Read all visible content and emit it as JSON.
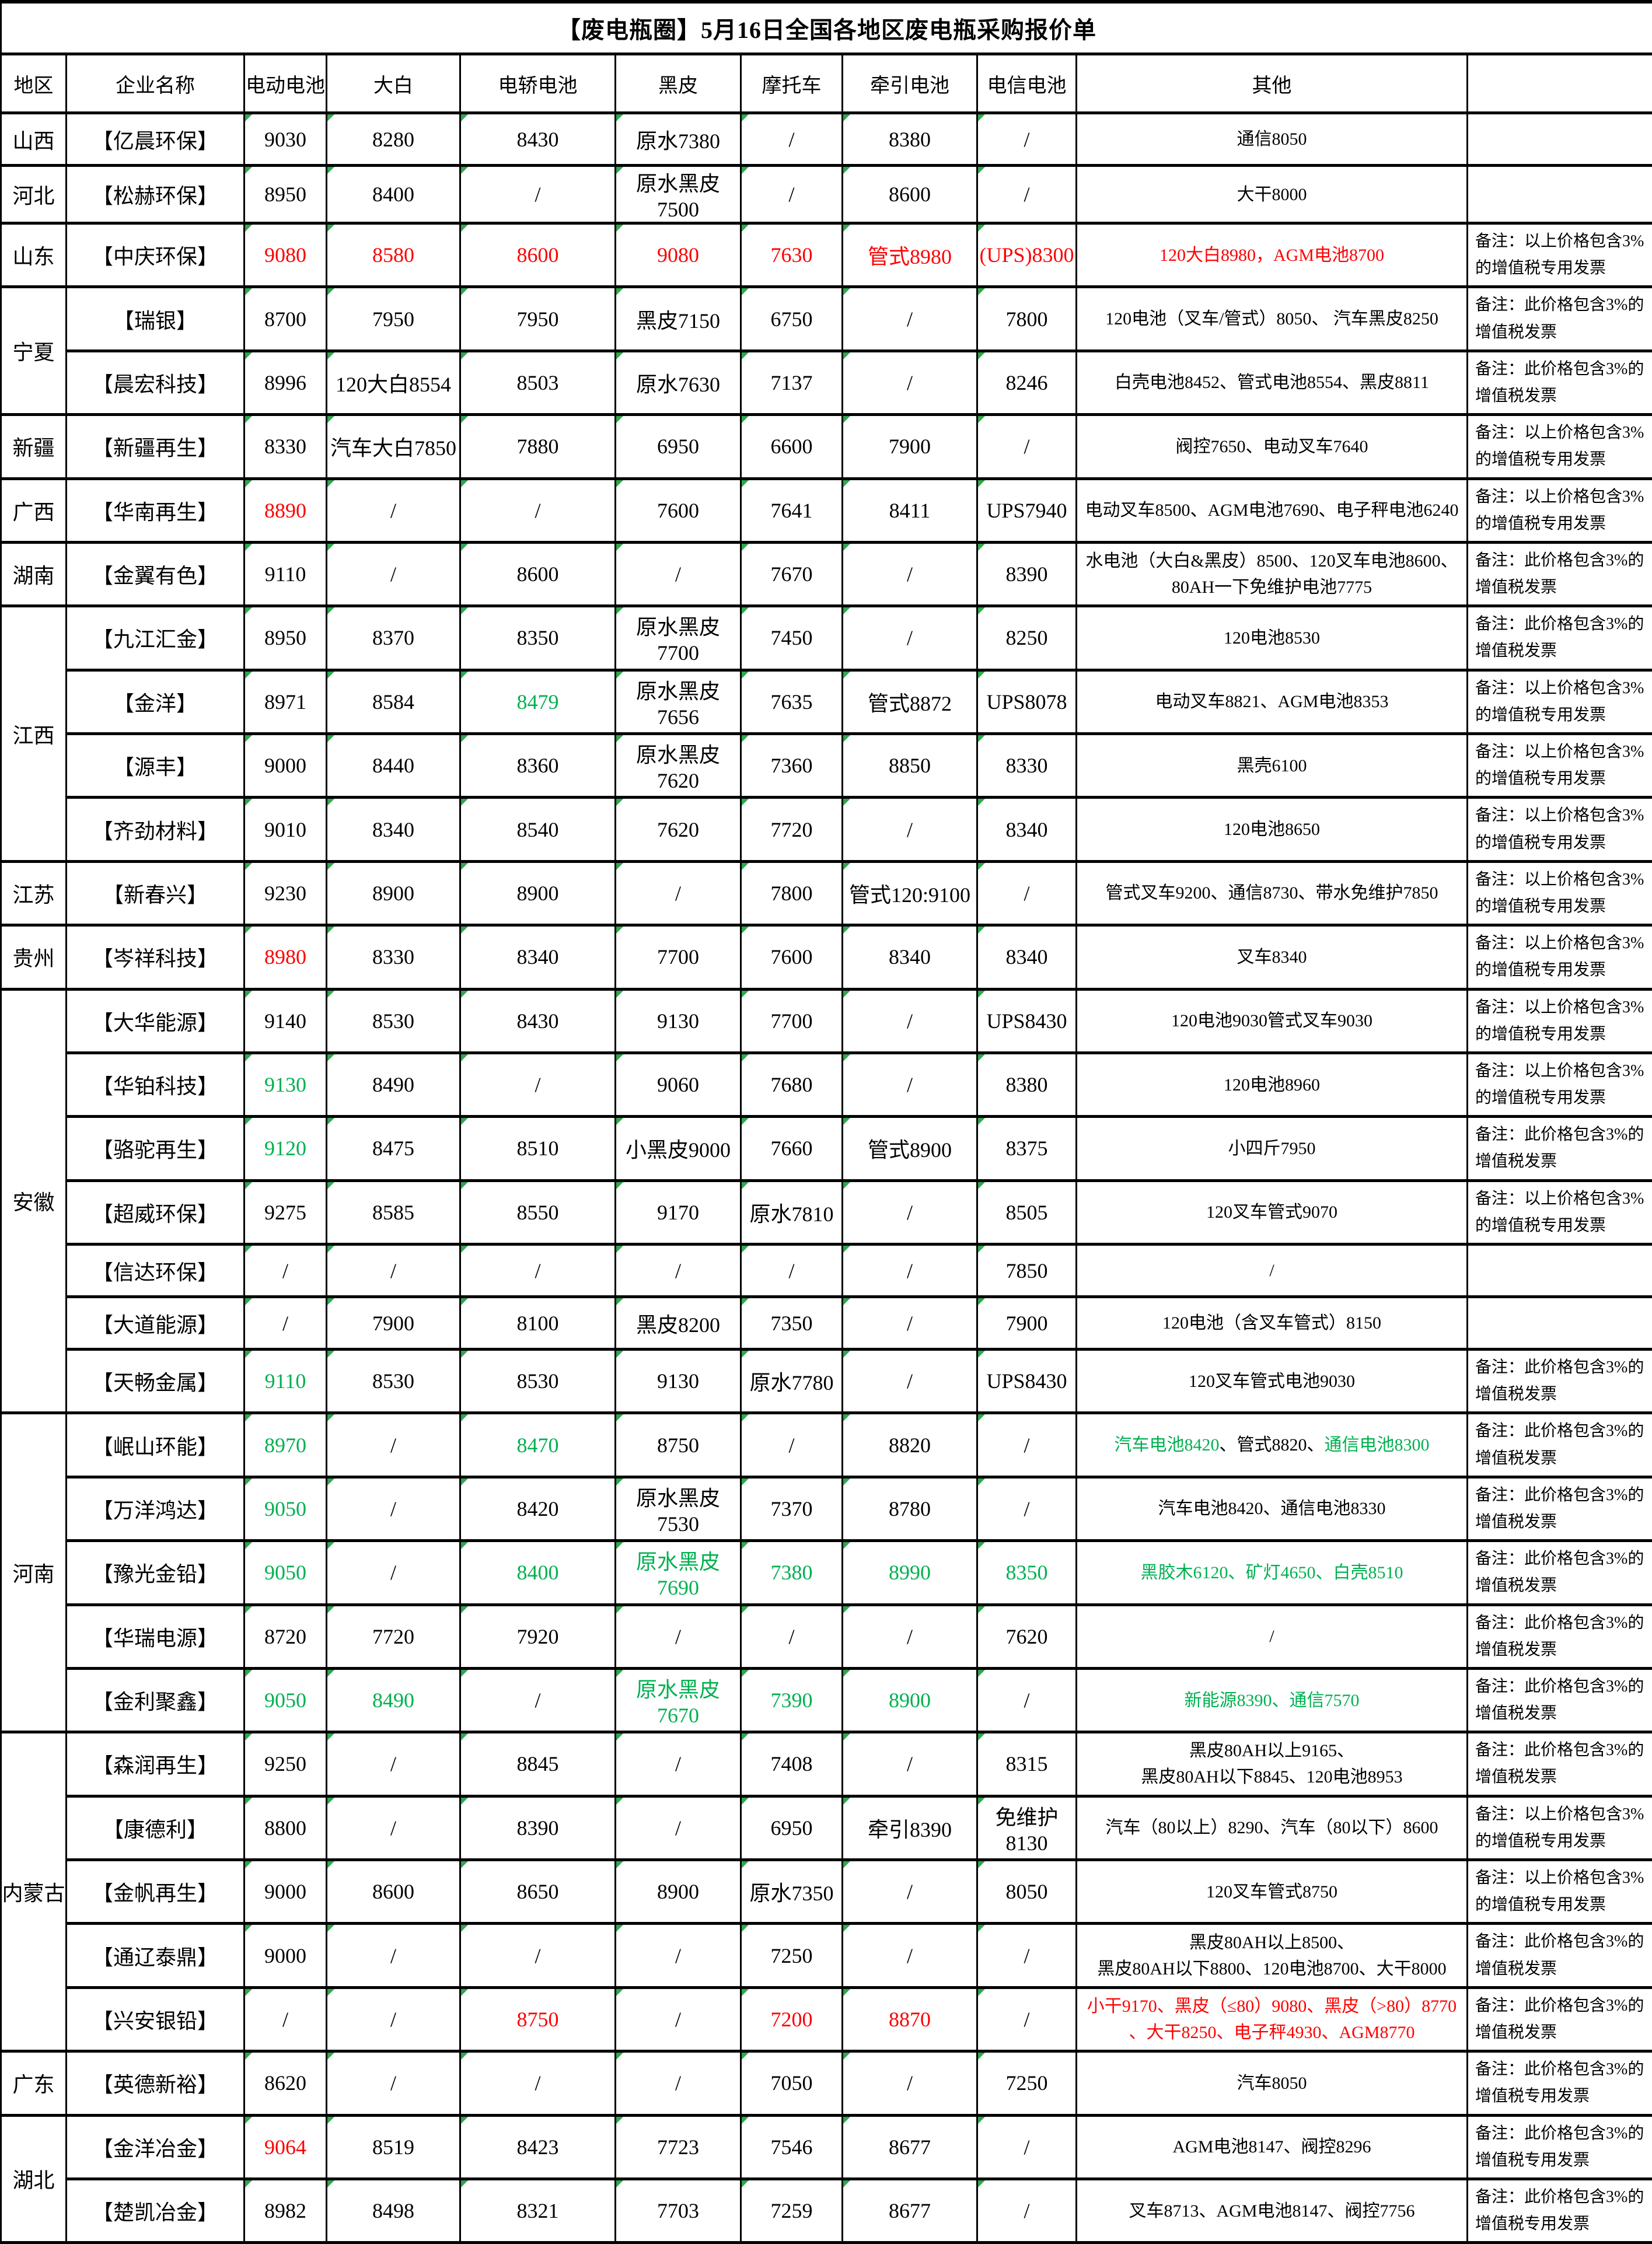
{
  "title": "【废电瓶圈】5月16日全国各地区废电瓶采购报价单",
  "columns": [
    "地区",
    "企业名称",
    "电动电池",
    "大白",
    "电轿电池",
    "黑皮",
    "摩托车",
    "牵引电池",
    "电信电池",
    "其他",
    ""
  ],
  "colors": {
    "red": "#fe0000",
    "green": "#00b050",
    "black": "#000000"
  },
  "remark_variants": {
    "special": "备注：以上价格包含3%的增值税专用发票",
    "normal": "备注：此价格包含3%的增值税发票",
    "this_special": "备注：此价格包含3%的增值税专用发票"
  },
  "rows": [
    {
      "region": "山西",
      "span": 1,
      "company": "【亿晨环保】",
      "cells": [
        "9030",
        "8280",
        "8430",
        "原水7380",
        "/",
        "8380",
        "/",
        "通信8050"
      ],
      "remark": ""
    },
    {
      "region": "河北",
      "span": 1,
      "company": "【松赫环保】",
      "cells": [
        "8950",
        "8400",
        "/",
        "原水黑皮7500",
        "/",
        "8600",
        "/",
        "大干8000"
      ],
      "remark": ""
    },
    {
      "region": "山东",
      "span": 1,
      "company": "【中庆环保】",
      "cells": [
        {
          "t": "9080",
          "c": "red"
        },
        {
          "t": "8580",
          "c": "red"
        },
        {
          "t": "8600",
          "c": "red"
        },
        {
          "t": "9080",
          "c": "red"
        },
        {
          "t": "7630",
          "c": "red"
        },
        {
          "t": "管式8980",
          "c": "red"
        },
        {
          "t": "(UPS)8300",
          "c": "red"
        },
        {
          "t": "120大白8980，AGM电池8700",
          "c": "red"
        }
      ],
      "remark": "备注：以上价格包含3%的增值税专用发票"
    },
    {
      "region": "宁夏",
      "span": 2,
      "company": "【瑞银】",
      "cells": [
        "8700",
        "7950",
        "7950",
        "黑皮7150",
        "6750",
        "/",
        "7800",
        "120电池（叉车/管式）8050、 汽车黑皮8250"
      ],
      "remark": "备注：此价格包含3%的增值税发票"
    },
    {
      "company": "【晨宏科技】",
      "cells": [
        "8996",
        "120大白8554",
        "8503",
        "原水7630",
        "7137",
        "/",
        "8246",
        "白壳电池8452、管式电池8554、黑皮8811"
      ],
      "remark": "备注：此价格包含3%的增值税发票"
    },
    {
      "region": "新疆",
      "span": 1,
      "company": "【新疆再生】",
      "cells": [
        "8330",
        "汽车大白7850",
        "7880",
        "6950",
        "6600",
        "7900",
        "/",
        "阀控7650、电动叉车7640"
      ],
      "remark": "备注：以上价格包含3%的增值税专用发票"
    },
    {
      "region": "广西",
      "span": 1,
      "company": "【华南再生】",
      "cells": [
        {
          "t": "8890",
          "c": "red"
        },
        "/",
        "/",
        "7600",
        "7641",
        "8411",
        "UPS7940",
        "电动叉车8500、AGM电池7690、电子秤电池6240"
      ],
      "remark": "备注：以上价格包含3%的增值税专用发票"
    },
    {
      "region": "湖南",
      "span": 1,
      "company": "【金翼有色】",
      "cells": [
        "9110",
        "/",
        "8600",
        "/",
        "7670",
        "/",
        "8390",
        "水电池（大白&黑皮）8500、120叉车电池8600、\n80AH一下免维护电池7775"
      ],
      "remark": "备注：此价格包含3%的增值税发票"
    },
    {
      "region": "江西",
      "span": 4,
      "company": "【九江汇金】",
      "cells": [
        "8950",
        "8370",
        "8350",
        "原水黑皮7700",
        "7450",
        "/",
        "8250",
        "120电池8530"
      ],
      "remark": "备注：此价格包含3%的增值税发票"
    },
    {
      "company": "【金洋】",
      "cells": [
        "8971",
        "8584",
        {
          "t": "8479",
          "c": "green"
        },
        "原水黑皮7656",
        "7635",
        "管式8872",
        "UPS8078",
        "电动叉车8821、AGM电池8353"
      ],
      "remark": "备注：以上价格包含3%的增值税专用发票"
    },
    {
      "company": "【源丰】",
      "cells": [
        "9000",
        "8440",
        "8360",
        "原水黑皮7620",
        "7360",
        "8850",
        "8330",
        "黑壳6100"
      ],
      "remark": "备注：以上价格包含3%的增值税专用发票"
    },
    {
      "company": "【齐劲材料】",
      "cells": [
        "9010",
        "8340",
        "8540",
        "7620",
        "7720",
        "/",
        "8340",
        "120电池8650"
      ],
      "remark": "备注：以上价格包含3%的增值税专用发票"
    },
    {
      "region": "江苏",
      "span": 1,
      "company": "【新春兴】",
      "cells": [
        "9230",
        "8900",
        "8900",
        "/",
        "7800",
        "管式120:9100",
        "/",
        "管式叉车9200、通信8730、带水免维护7850"
      ],
      "remark": "备注：以上价格包含3%的增值税专用发票"
    },
    {
      "region": "贵州",
      "span": 1,
      "company": "【岑祥科技】",
      "cells": [
        {
          "t": "8980",
          "c": "red"
        },
        "8330",
        "8340",
        "7700",
        "7600",
        "8340",
        "8340",
        "叉车8340"
      ],
      "remark": "备注：以上价格包含3%的增值税专用发票"
    },
    {
      "region": "安徽",
      "span": 7,
      "company": "【大华能源】",
      "cells": [
        "9140",
        "8530",
        "8430",
        "9130",
        "7700",
        "/",
        "UPS8430",
        "120电池9030管式叉车9030"
      ],
      "remark": "备注：以上价格包含3%的增值税专用发票"
    },
    {
      "company": "【华铂科技】",
      "cells": [
        {
          "t": "9130",
          "c": "green"
        },
        "8490",
        "/",
        "9060",
        "7680",
        "/",
        "8380",
        "120电池8960"
      ],
      "remark": "备注：以上价格包含3%的增值税专用发票"
    },
    {
      "company": "【骆驼再生】",
      "cells": [
        {
          "t": "9120",
          "c": "green"
        },
        "8475",
        "8510",
        "小黑皮9000",
        "7660",
        "管式8900",
        "8375",
        "小四斤7950"
      ],
      "remark": "备注：此价格包含3%的增值税发票"
    },
    {
      "company": "【超威环保】",
      "cells": [
        "9275",
        "8585",
        "8550",
        "9170",
        "原水7810",
        "/",
        "8505",
        "120叉车管式9070"
      ],
      "remark": "备注：以上价格包含3%的增值税专用发票"
    },
    {
      "company": "【信达环保】",
      "cells": [
        "/",
        "/",
        "/",
        "/",
        "/",
        "/",
        "7850",
        "/"
      ],
      "remark": ""
    },
    {
      "company": "【大道能源】",
      "cells": [
        "/",
        "7900",
        "8100",
        "黑皮8200",
        "7350",
        "/",
        "7900",
        "120电池（含叉车管式）8150"
      ],
      "remark": ""
    },
    {
      "company": "【天畅金属】",
      "cells": [
        {
          "t": "9110",
          "c": "green"
        },
        "8530",
        "8530",
        "9130",
        "原水7780",
        "/",
        "UPS8430",
        "120叉车管式电池9030"
      ],
      "remark": "备注：此价格包含3%的增值税发票"
    },
    {
      "region": "河南",
      "span": 5,
      "company": "【岷山环能】",
      "cells": [
        {
          "t": "8970",
          "c": "green"
        },
        "/",
        {
          "t": "8470",
          "c": "green"
        },
        "8750",
        "/",
        "8820",
        "/",
        {
          "seg": [
            {
              "t": "汽车电池8420",
              "c": "green"
            },
            {
              "t": "、管式8820、",
              "c": "black"
            },
            {
              "t": "通信电池8300",
              "c": "green"
            }
          ]
        }
      ],
      "remark": "备注：此价格包含3%的增值税发票"
    },
    {
      "company": "【万洋鸿达】",
      "cells": [
        {
          "t": "9050",
          "c": "green"
        },
        "/",
        "8420",
        "原水黑皮7530",
        "7370",
        "8780",
        "/",
        "汽车电池8420、通信电池8330"
      ],
      "remark": "备注：此价格包含3%的增值税发票"
    },
    {
      "company": "【豫光金铅】",
      "cells": [
        {
          "t": "9050",
          "c": "green"
        },
        "/",
        {
          "t": "8400",
          "c": "green"
        },
        {
          "t": "原水黑皮7690",
          "c": "green"
        },
        {
          "t": "7380",
          "c": "green"
        },
        {
          "t": "8990",
          "c": "green"
        },
        {
          "t": "8350",
          "c": "green"
        },
        {
          "t": "黑胶木6120、矿灯4650、白壳8510",
          "c": "green"
        }
      ],
      "remark": "备注：此价格包含3%的增值税发票"
    },
    {
      "company": "【华瑞电源】",
      "cells": [
        "8720",
        "7720",
        "7920",
        "/",
        "/",
        "/",
        "7620",
        "/"
      ],
      "remark": "备注：此价格包含3%的增值税发票"
    },
    {
      "company": "【金利聚鑫】",
      "cells": [
        {
          "t": "9050",
          "c": "green"
        },
        {
          "t": "8490",
          "c": "green"
        },
        "/",
        {
          "t": "原水黑皮7670",
          "c": "green"
        },
        {
          "t": "7390",
          "c": "green"
        },
        {
          "t": "8900",
          "c": "green"
        },
        "/",
        {
          "t": "新能源8390、通信7570",
          "c": "green"
        }
      ],
      "remark": "备注：此价格包含3%的增值税发票"
    },
    {
      "region": "内蒙古",
      "span": 5,
      "company": "【森润再生】",
      "cells": [
        "9250",
        "/",
        "8845",
        "/",
        "7408",
        "/",
        "8315",
        "黑皮80AH以上9165、\n黑皮80AH以下8845、120电池8953"
      ],
      "remark": "备注：此价格包含3%的增值税发票"
    },
    {
      "company": "【康德利】",
      "cells": [
        "8800",
        "/",
        "8390",
        "/",
        "6950",
        "牵引8390",
        "免维护8130",
        "汽车（80以上）8290、汽车（80以下）8600"
      ],
      "remark": "备注：以上价格包含3%的增值税专用发票"
    },
    {
      "company": "【金帆再生】",
      "cells": [
        "9000",
        "8600",
        "8650",
        "8900",
        "原水7350",
        "/",
        "8050",
        "120叉车管式8750"
      ],
      "remark": "备注：以上价格包含3%的增值税专用发票"
    },
    {
      "company": "【通辽泰鼎】",
      "cells": [
        "9000",
        "/",
        "/",
        "/",
        "7250",
        "/",
        "/",
        "黑皮80AH以上8500、\n黑皮80AH以下8800、120电池8700、大干8000"
      ],
      "remark": "备注：此价格包含3%的增值税发票"
    },
    {
      "company": "【兴安银铅】",
      "cells": [
        "/",
        "/",
        {
          "t": "8750",
          "c": "red"
        },
        "/",
        {
          "t": "7200",
          "c": "red"
        },
        {
          "t": "8870",
          "c": "red"
        },
        "/",
        {
          "t": "小干9170、黑皮（≤80）9080、黑皮（>80）8770\n、大干8250、电子秤4930、AGM8770",
          "c": "red"
        }
      ],
      "remark": "备注：此价格包含3%的增值税发票"
    },
    {
      "region": "广东",
      "span": 1,
      "company": "【英德新裕】",
      "cells": [
        "8620",
        "/",
        "/",
        "/",
        "7050",
        "/",
        "7250",
        "汽车8050"
      ],
      "remark": "备注：此价格包含3%的增值税专用发票"
    },
    {
      "region": "湖北",
      "span": 2,
      "company": "【金洋冶金】",
      "cells": [
        {
          "t": "9064",
          "c": "red"
        },
        "8519",
        "8423",
        "7723",
        "7546",
        "8677",
        "/",
        "AGM电池8147、阀控8296"
      ],
      "remark": "备注：此价格包含3%的增值税专用发票"
    },
    {
      "company": "【楚凯冶金】",
      "cells": [
        "8982",
        "8498",
        "8321",
        "7703",
        "7259",
        "8677",
        "/",
        "叉车8713、AGM电池8147、阀控7756"
      ],
      "remark": "备注：此价格包含3%的增值税专用发票"
    }
  ]
}
